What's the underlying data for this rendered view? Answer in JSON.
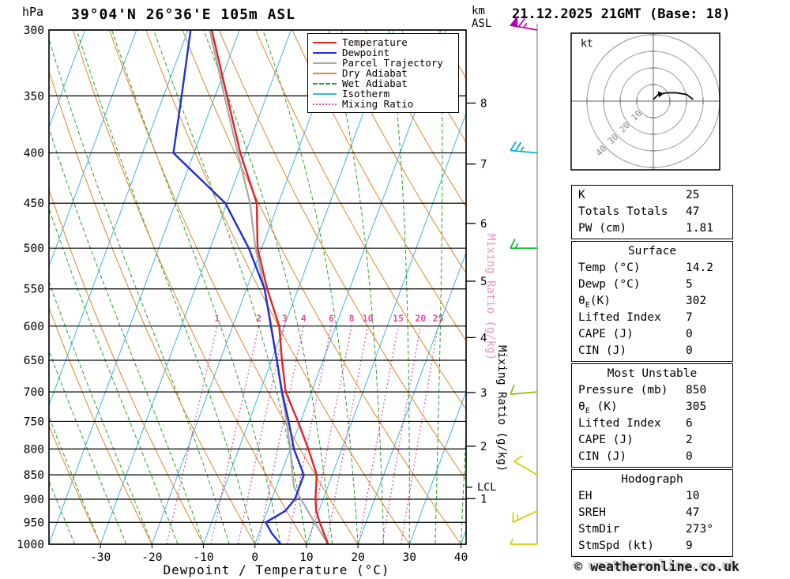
{
  "header": {
    "pressure_unit": "hPa",
    "title": "39°04'N 26°36'E 105m ASL",
    "datetime": "21.12.2025 21GMT (Base: 18)",
    "km_unit": "km",
    "km_asl": "ASL"
  },
  "footer": {
    "copyright": "© weatheronline.co.uk"
  },
  "legend": {
    "items": [
      {
        "label": "Temperature",
        "color": "#e32222",
        "style": "solid"
      },
      {
        "label": "Dewpoint",
        "color": "#1f2fd4",
        "style": "solid"
      },
      {
        "label": "Parcel Trajectory",
        "color": "#a8a8a8",
        "style": "solid"
      },
      {
        "label": "Dry Adiabat",
        "color": "#e08728",
        "style": "solid"
      },
      {
        "label": "Wet Adiabat",
        "color": "#28a028",
        "style": "dashed"
      },
      {
        "label": "Isotherm",
        "color": "#3cb4e6",
        "style": "solid"
      },
      {
        "label": "Mixing Ratio",
        "color": "#e84ca0",
        "style": "dotted"
      }
    ]
  },
  "chart_data": {
    "type": "skewt-logp",
    "x_axis": {
      "label": "Dewpoint / Temperature (°C)",
      "ticks": [
        -30,
        -20,
        -10,
        0,
        10,
        20,
        30,
        40
      ],
      "min": -40,
      "max": 41
    },
    "y_axis": {
      "unit": "hPa",
      "ticks": [
        300,
        350,
        400,
        450,
        500,
        550,
        600,
        650,
        700,
        750,
        800,
        850,
        900,
        950,
        1000
      ],
      "pmin": 300,
      "pmax": 1000
    },
    "km_ticks": [
      1,
      2,
      3,
      4,
      5,
      6,
      7,
      8
    ],
    "skew_shift_c": 37,
    "isotherms": {
      "start": -120,
      "end": 40,
      "step": 10,
      "color": "#3cb4e6"
    },
    "dry_adiabats": {
      "start": -40,
      "end": 160,
      "step": 10,
      "color": "#e08728"
    },
    "wet_adiabats": {
      "start": -60,
      "end": 50,
      "step": 5,
      "color": "#28a028"
    },
    "mixing_ratios": [
      1,
      2,
      3,
      4,
      6,
      8,
      10,
      15,
      20,
      25
    ],
    "mixing_ratio_color": "#e84ca0",
    "mixing_ratio_label_black": "Mixing Ratio (g/kg)",
    "mixing_ratio_label_pink": "Mixing Ratio (g/kg)",
    "lcl": {
      "label": "LCL",
      "pressure": 875
    },
    "temperature_profile": [
      [
        1000,
        14.2
      ],
      [
        950,
        11
      ],
      [
        925,
        9.5
      ],
      [
        900,
        8.5
      ],
      [
        850,
        7
      ],
      [
        800,
        3.5
      ],
      [
        750,
        -0.5
      ],
      [
        700,
        -5
      ],
      [
        650,
        -8
      ],
      [
        600,
        -11
      ],
      [
        550,
        -16
      ],
      [
        500,
        -20.8
      ],
      [
        450,
        -24.2
      ],
      [
        400,
        -31
      ],
      [
        350,
        -37.7
      ],
      [
        300,
        -45.4
      ]
    ],
    "dewpoint_profile": [
      [
        1000,
        5
      ],
      [
        975,
        2.5
      ],
      [
        950,
        0.5
      ],
      [
        925,
        3.5
      ],
      [
        900,
        4.5
      ],
      [
        850,
        4.5
      ],
      [
        800,
        0.7
      ],
      [
        750,
        -2.3
      ],
      [
        700,
        -5.7
      ],
      [
        650,
        -9
      ],
      [
        600,
        -12.6
      ],
      [
        550,
        -16.5
      ],
      [
        500,
        -22.5
      ],
      [
        450,
        -30.3
      ],
      [
        400,
        -44
      ],
      [
        350,
        -46.5
      ],
      [
        300,
        -49.5
      ]
    ],
    "parcel_profile": [
      [
        1000,
        14.2
      ],
      [
        950,
        10
      ],
      [
        900,
        5.7
      ],
      [
        875,
        3.5
      ],
      [
        850,
        2.3
      ],
      [
        800,
        0
      ],
      [
        750,
        -2.7
      ],
      [
        700,
        -5.8
      ],
      [
        650,
        -9
      ],
      [
        600,
        -12.5
      ],
      [
        550,
        -16.5
      ],
      [
        500,
        -21.2
      ],
      [
        450,
        -25.5
      ],
      [
        400,
        -31.5
      ],
      [
        350,
        -38.2
      ],
      [
        300,
        -45.8
      ]
    ],
    "profile_colors": {
      "temperature": "#e32222",
      "dewpoint": "#1f2fd4",
      "parcel": "#a8a8a8"
    },
    "wind_barbs": [
      {
        "pressure": 300,
        "speed_kt": 65,
        "dir_deg": 280,
        "color": "#b400b4"
      },
      {
        "pressure": 400,
        "speed_kt": 25,
        "dir_deg": 275,
        "color": "#00aadc"
      },
      {
        "pressure": 500,
        "speed_kt": 15,
        "dir_deg": 270,
        "color": "#00be28"
      },
      {
        "pressure": 700,
        "speed_kt": 10,
        "dir_deg": 265,
        "color": "#78c800"
      },
      {
        "pressure": 850,
        "speed_kt": 10,
        "dir_deg": 300,
        "color": "#d2cd00"
      },
      {
        "pressure": 925,
        "speed_kt": 15,
        "dir_deg": 245,
        "color": "#d2cd00"
      },
      {
        "pressure": 1000,
        "speed_kt": 5,
        "dir_deg": 270,
        "color": "#d2cd00"
      }
    ]
  },
  "hodograph": {
    "unit_label": "kt",
    "rings": [
      10,
      20,
      30,
      40
    ],
    "ring_labels": [
      "10",
      "20",
      "30",
      "40"
    ],
    "trace_uv": [
      [
        0,
        1
      ],
      [
        3,
        4
      ],
      [
        8,
        5
      ],
      [
        14,
        5
      ],
      [
        20,
        4
      ],
      [
        24,
        1
      ]
    ]
  },
  "table": {
    "sections": [
      {
        "header": null,
        "rows": [
          {
            "label": "K",
            "value": "25"
          },
          {
            "label": "Totals Totals",
            "value": "47"
          },
          {
            "label": "PW (cm)",
            "value": "1.81"
          }
        ]
      },
      {
        "header": "Surface",
        "rows": [
          {
            "label": "Temp (°C)",
            "value": "14.2"
          },
          {
            "label": "Dewp (°C)",
            "value": "5"
          },
          {
            "label": "θ",
            "sub": "E",
            "rest": "(K)",
            "value": "302"
          },
          {
            "label": "Lifted Index",
            "value": "7"
          },
          {
            "label": "CAPE (J)",
            "value": "0"
          },
          {
            "label": "CIN (J)",
            "value": "0"
          }
        ]
      },
      {
        "header": "Most Unstable",
        "rows": [
          {
            "label": "Pressure (mb)",
            "value": "850"
          },
          {
            "label": "θ",
            "sub": "E",
            "rest": " (K)",
            "value": "305"
          },
          {
            "label": "Lifted Index",
            "value": "6"
          },
          {
            "label": "CAPE (J)",
            "value": "2"
          },
          {
            "label": "CIN (J)",
            "value": "0"
          }
        ]
      },
      {
        "header": "Hodograph",
        "rows": [
          {
            "label": "EH",
            "value": "10"
          },
          {
            "label": "SREH",
            "value": "47"
          },
          {
            "label": "StmDir",
            "value": "273°"
          },
          {
            "label": "StmSpd (kt)",
            "value": "9"
          }
        ]
      }
    ]
  }
}
